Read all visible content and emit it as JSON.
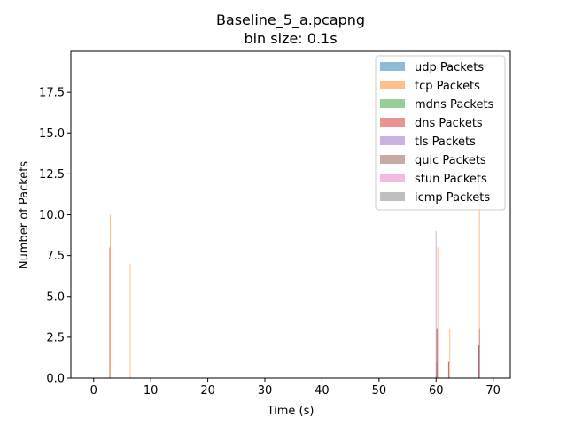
{
  "chart_data": {
    "type": "bar",
    "title": "Baseline_5_a.pcapng",
    "subtitle": "bin size: 0.1s",
    "xlabel": "Time (s)",
    "ylabel": "Number of Packets",
    "xlim": [
      -4,
      73
    ],
    "ylim": [
      0,
      20
    ],
    "xticks": [
      0,
      10,
      20,
      30,
      40,
      50,
      60,
      70
    ],
    "yticks": [
      0.0,
      2.5,
      5.0,
      7.5,
      10.0,
      12.5,
      15.0,
      17.5
    ],
    "ytick_labels": [
      "0.0",
      "2.5",
      "5.0",
      "7.5",
      "10.0",
      "12.5",
      "15.0",
      "17.5"
    ],
    "bin_size": 0.1,
    "grid": false,
    "legend_position": "top-right",
    "series": [
      {
        "name": "udp Packets",
        "color": "#1f77b4",
        "points": [
          [
            60.1,
            1
          ],
          [
            62.2,
            1
          ],
          [
            67.5,
            2
          ]
        ]
      },
      {
        "name": "tcp Packets",
        "color": "#ff7f0e",
        "points": [
          [
            2.9,
            10
          ],
          [
            6.4,
            7
          ],
          [
            60.3,
            8
          ],
          [
            62.4,
            3
          ],
          [
            67.6,
            12
          ]
        ]
      },
      {
        "name": "mdns Packets",
        "color": "#2ca02c",
        "points": []
      },
      {
        "name": "dns Packets",
        "color": "#d62728",
        "points": [
          [
            2.8,
            8
          ],
          [
            60.1,
            3
          ],
          [
            62.2,
            1
          ],
          [
            67.5,
            2
          ]
        ]
      },
      {
        "name": "tls Packets",
        "color": "#9467bd",
        "points": [
          [
            60.0,
            9
          ],
          [
            67.5,
            2
          ]
        ]
      },
      {
        "name": "quic Packets",
        "color": "#8c564b",
        "points": [
          [
            60.2,
            3
          ],
          [
            67.6,
            3
          ]
        ]
      },
      {
        "name": "stun Packets",
        "color": "#e377c2",
        "points": []
      },
      {
        "name": "icmp Packets",
        "color": "#7f7f7f",
        "points": []
      }
    ]
  }
}
